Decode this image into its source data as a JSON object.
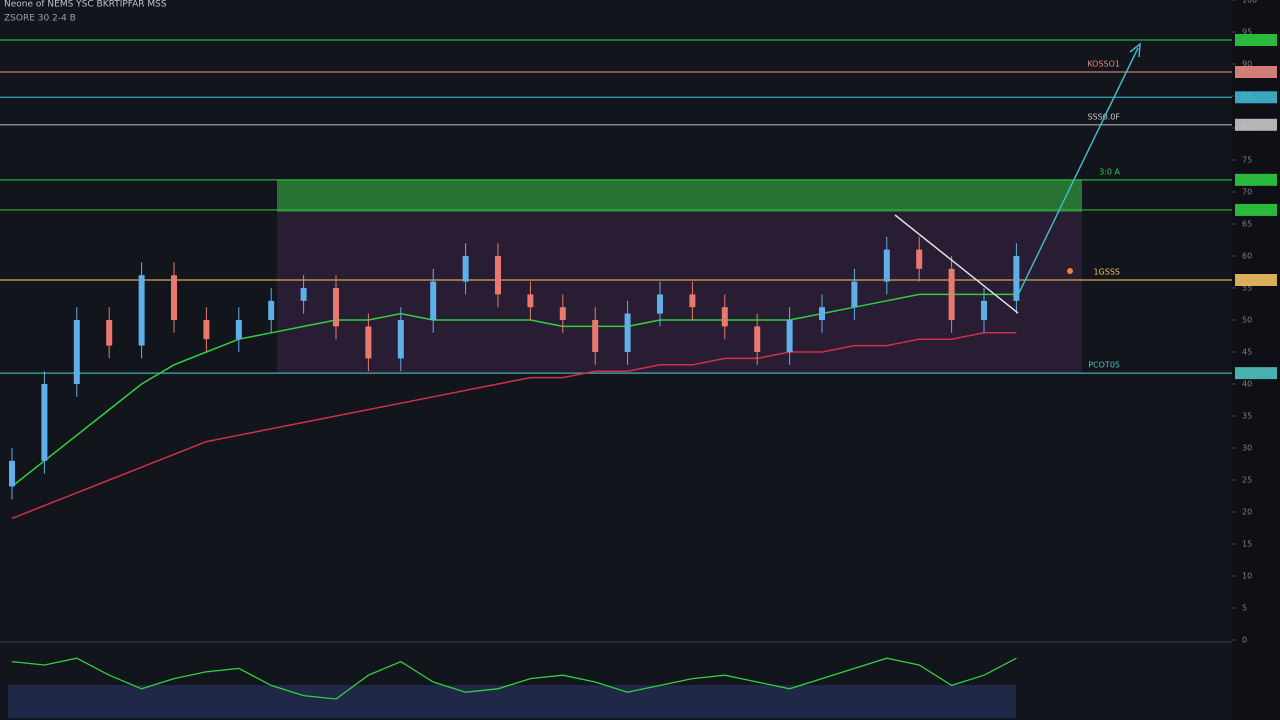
{
  "chart_data": [
    {
      "type": "candlestick",
      "title": "Neone of NEMS YSC BKRTIPFAR MSS",
      "subtitle": "ZSORE 30  2-4 B",
      "ylim": [
        0,
        100
      ],
      "yticks": [
        0,
        5,
        10,
        15,
        20,
        25,
        30,
        35,
        40,
        45,
        50,
        55,
        60,
        65,
        70,
        75,
        80,
        85,
        90,
        95,
        100
      ],
      "open": [
        24,
        28,
        40,
        50,
        46,
        57,
        50,
        47,
        50,
        53,
        55,
        49,
        44,
        50,
        56,
        60,
        54,
        52,
        50,
        45,
        51,
        54,
        52,
        49,
        45,
        50,
        52,
        56,
        61,
        58,
        50,
        53
      ],
      "high": [
        30,
        42,
        52,
        52,
        59,
        59,
        52,
        52,
        55,
        57,
        57,
        51,
        52,
        58,
        62,
        62,
        56,
        54,
        52,
        53,
        56,
        56,
        54,
        51,
        52,
        54,
        58,
        63,
        63,
        60,
        55,
        62
      ],
      "low": [
        22,
        26,
        38,
        44,
        44,
        48,
        45,
        45,
        48,
        51,
        47,
        42,
        42,
        48,
        54,
        52,
        50,
        48,
        43,
        43,
        49,
        50,
        47,
        43,
        43,
        48,
        50,
        54,
        56,
        48,
        48,
        51
      ],
      "close": [
        28,
        40,
        50,
        46,
        57,
        50,
        47,
        50,
        53,
        55,
        49,
        44,
        50,
        56,
        60,
        54,
        52,
        50,
        45,
        51,
        54,
        52,
        49,
        45,
        50,
        52,
        56,
        61,
        58,
        50,
        53,
        60
      ],
      "up_color": "#5fb0e8",
      "down_color": "#e8796c",
      "series": [
        {
          "color": "#2fd13a",
          "values": [
            24,
            28,
            32,
            36,
            40,
            43,
            45,
            47,
            48,
            49,
            50,
            50,
            51,
            50,
            50,
            50,
            50,
            49,
            49,
            49,
            50,
            50,
            50,
            50,
            50,
            51,
            52,
            53,
            54,
            54,
            54,
            54
          ]
        },
        {
          "color": "#d0304a",
          "values": [
            19,
            21,
            23,
            25,
            27,
            29,
            31,
            32,
            33,
            34,
            35,
            36,
            37,
            38,
            39,
            40,
            41,
            41,
            42,
            42,
            43,
            43,
            44,
            44,
            45,
            45,
            46,
            46,
            47,
            47,
            48,
            48
          ]
        }
      ],
      "zone": {
        "low": 66.9,
        "high": 71.9,
        "color": "#2e8b3a"
      },
      "range_box": {
        "low": 41.7,
        "high": 66.9
      },
      "levels": [
        {
          "value": 93.75,
          "color": "#2ecc40"
        },
        {
          "value": 88.75,
          "color": "#e88a80",
          "label": "KOSSO1"
        },
        {
          "value": 84.8,
          "color": "#3fb8d0"
        },
        {
          "value": 80.5,
          "color": "#c8c8c8",
          "label": "SSS0.0F"
        },
        {
          "value": 71.9,
          "color": "#2ecc40",
          "label": "3:0 A"
        },
        {
          "value": 67.2,
          "color": "#2ecc40"
        },
        {
          "value": 56.25,
          "color": "#f0c060",
          "label": "1GSSS"
        },
        {
          "value": 41.7,
          "color": "#4fc3c0",
          "label": "PCOT05"
        }
      ]
    },
    {
      "type": "line",
      "ylim": [
        0,
        100
      ],
      "series": [
        {
          "color": "#2fd13a",
          "values": [
            80,
            75,
            85,
            60,
            40,
            55,
            65,
            70,
            45,
            30,
            25,
            60,
            80,
            50,
            35,
            40,
            55,
            60,
            50,
            35,
            45,
            55,
            60,
            50,
            40,
            55,
            70,
            85,
            75,
            45,
            60,
            85
          ]
        }
      ]
    }
  ]
}
